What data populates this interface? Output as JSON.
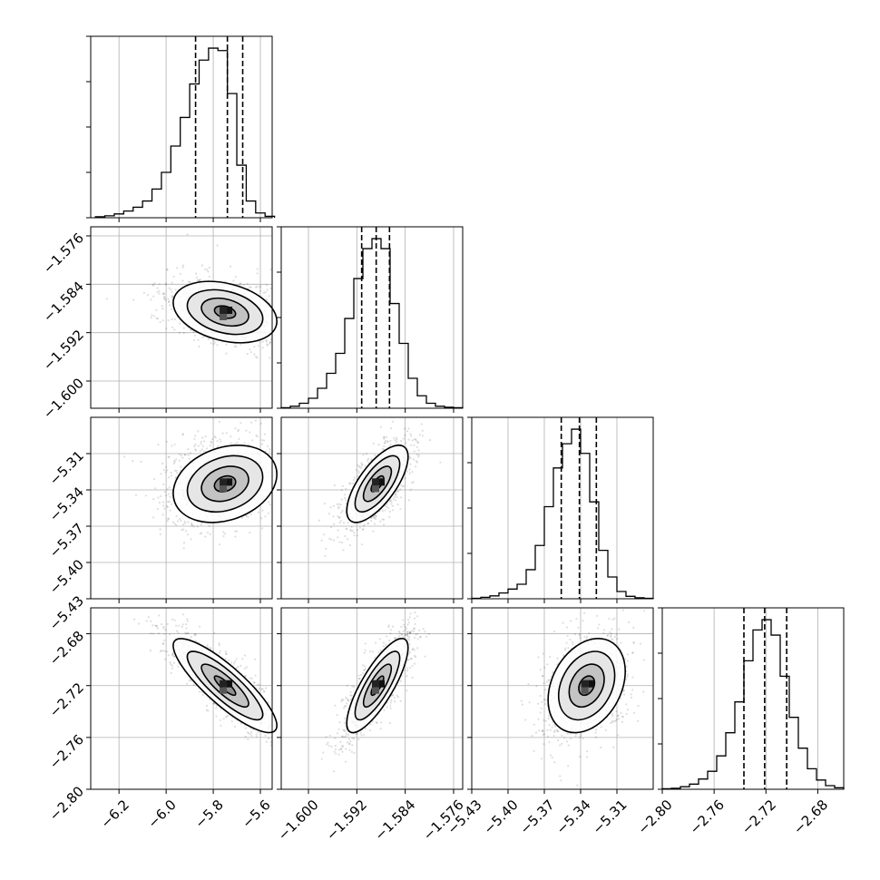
{
  "colors": {
    "ink": "#000000",
    "grid": "#b0b0b0",
    "frame": "#000000",
    "scatter": "#000000"
  },
  "chart_data": {
    "type": "corner",
    "grid": true,
    "parameters": [
      {
        "range": [
          -6.32,
          -5.55
        ],
        "ticks": [
          -6.2,
          -6.0,
          -5.8,
          -5.6
        ],
        "tick_labels": [
          "−6.2",
          "−6.0",
          "−5.8",
          "−5.6"
        ],
        "quantiles": [
          -5.875,
          -5.74,
          -5.675
        ],
        "center": [
          -5.75
        ],
        "hist": {
          "bins": [
            -6.3,
            -6.26,
            -6.22,
            -6.18,
            -6.14,
            -6.1,
            -6.06,
            -6.02,
            -5.98,
            -5.94,
            -5.9,
            -5.86,
            -5.82,
            -5.78,
            -5.74,
            -5.7,
            -5.66,
            -5.62,
            -5.58,
            -5.54
          ],
          "counts": [
            2,
            4,
            8,
            14,
            22,
            35,
            60,
            95,
            150,
            210,
            280,
            330,
            355,
            350,
            260,
            110,
            35,
            10,
            3
          ]
        }
      },
      {
        "range": [
          -1.6045,
          -1.5745
        ],
        "ticks": [
          -1.6,
          -1.592,
          -1.584,
          -1.576
        ],
        "tick_labels": [
          "−1.600",
          "−1.592",
          "−1.584",
          "−1.576"
        ],
        "quantiles": [
          -1.5912,
          -1.5888,
          -1.5866
        ],
        "center": [
          -1.5886
        ],
        "hist": {
          "bins": [
            -1.6045,
            -1.603,
            -1.6015,
            -1.6,
            -1.5985,
            -1.597,
            -1.5955,
            -1.594,
            -1.5925,
            -1.591,
            -1.5895,
            -1.588,
            -1.5865,
            -1.585,
            -1.5835,
            -1.582,
            -1.5805,
            -1.579,
            -1.5775,
            -1.576,
            -1.5745
          ],
          "counts": [
            1,
            4,
            10,
            20,
            40,
            70,
            110,
            180,
            260,
            320,
            340,
            320,
            210,
            130,
            60,
            25,
            10,
            4,
            2,
            1
          ]
        }
      },
      {
        "range": [
          -5.43,
          -5.28
        ],
        "ticks": [
          -5.43,
          -5.4,
          -5.37,
          -5.34,
          -5.31
        ],
        "tick_labels": [
          "−5.43",
          "−5.40",
          "−5.37",
          "−5.34",
          "−5.31"
        ],
        "quantiles": [
          -5.356,
          -5.341,
          -5.327
        ],
        "center": [
          -5.335
        ],
        "hist": {
          "bins": [
            -5.43,
            -5.4225,
            -5.415,
            -5.4075,
            -5.4,
            -5.3925,
            -5.385,
            -5.3775,
            -5.37,
            -5.3625,
            -5.355,
            -5.3475,
            -5.34,
            -5.3325,
            -5.325,
            -5.3175,
            -5.31,
            -5.3025,
            -5.295,
            -5.2875,
            -5.28
          ],
          "counts": [
            1,
            3,
            6,
            12,
            20,
            30,
            60,
            110,
            190,
            270,
            320,
            350,
            300,
            200,
            100,
            45,
            15,
            5,
            2,
            1
          ]
        }
      },
      {
        "range": [
          -2.8,
          -2.66
        ],
        "ticks": [
          -2.8,
          -2.76,
          -2.72,
          -2.68
        ],
        "tick_labels": [
          "−2.80",
          "−2.76",
          "−2.72",
          "−2.68"
        ],
        "quantiles": [
          -2.737,
          -2.721,
          -2.704
        ],
        "center": [
          -2.72
        ],
        "hist": {
          "bins": [
            -2.8,
            -2.793,
            -2.786,
            -2.779,
            -2.772,
            -2.765,
            -2.758,
            -2.751,
            -2.744,
            -2.737,
            -2.73,
            -2.723,
            -2.716,
            -2.709,
            -2.702,
            -2.695,
            -2.688,
            -2.681,
            -2.674,
            -2.667,
            -2.66
          ],
          "counts": [
            1,
            2,
            5,
            10,
            20,
            35,
            65,
            110,
            170,
            250,
            310,
            330,
            300,
            220,
            140,
            80,
            40,
            18,
            7,
            3
          ]
        }
      }
    ],
    "pairs": [
      {
        "row": 1,
        "col": 0,
        "correlation": -0.3,
        "orientation": 0.2
      },
      {
        "row": 2,
        "col": 0,
        "correlation": 0.25,
        "orientation": -0.3
      },
      {
        "row": 2,
        "col": 1,
        "correlation": 0.7,
        "orientation": 0.0
      },
      {
        "row": 3,
        "col": 0,
        "correlation": -0.85,
        "orientation": 0.0
      },
      {
        "row": 3,
        "col": 1,
        "correlation": 0.8,
        "orientation": 0.0
      },
      {
        "row": 3,
        "col": 2,
        "correlation": 0.3,
        "orientation": 0.0
      }
    ]
  }
}
